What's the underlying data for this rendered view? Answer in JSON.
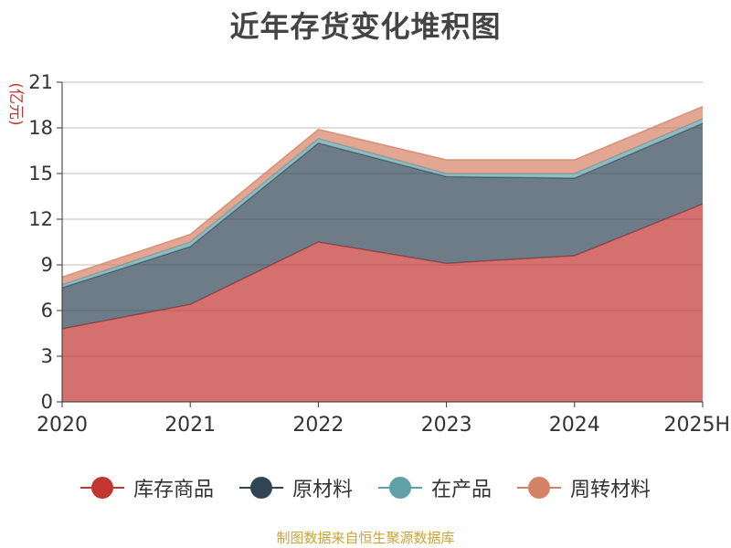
{
  "title": "近年存货变化堆积图",
  "source_text": "制图数据来自恒生聚源数据库",
  "colors": {
    "库存商品": "#c23531",
    "原材料": "#2f4554",
    "在产品": "#61a0a8",
    "周转材料": "#d48265"
  },
  "chart_data": {
    "type": "area",
    "stacked": true,
    "title": "近年存货变化堆积图",
    "ylabel": "(亿元)",
    "xlabel": "",
    "x": [
      "2020",
      "2021",
      "2022",
      "2023",
      "2024",
      "2025H"
    ],
    "ylim": [
      0,
      21
    ],
    "yticks": [
      0,
      3,
      6,
      9,
      12,
      15,
      18,
      21
    ],
    "grid": true,
    "legend_position": "bottom",
    "series": [
      {
        "name": "库存商品",
        "values": [
          4.8,
          6.4,
          10.5,
          9.1,
          9.6,
          13.0
        ]
      },
      {
        "name": "原材料",
        "values": [
          2.7,
          3.8,
          6.5,
          5.7,
          5.1,
          5.3
        ]
      },
      {
        "name": "在产品",
        "values": [
          0.2,
          0.3,
          0.3,
          0.2,
          0.3,
          0.3
        ]
      },
      {
        "name": "周转材料",
        "values": [
          0.5,
          0.5,
          0.6,
          0.9,
          0.9,
          0.8
        ]
      }
    ]
  }
}
